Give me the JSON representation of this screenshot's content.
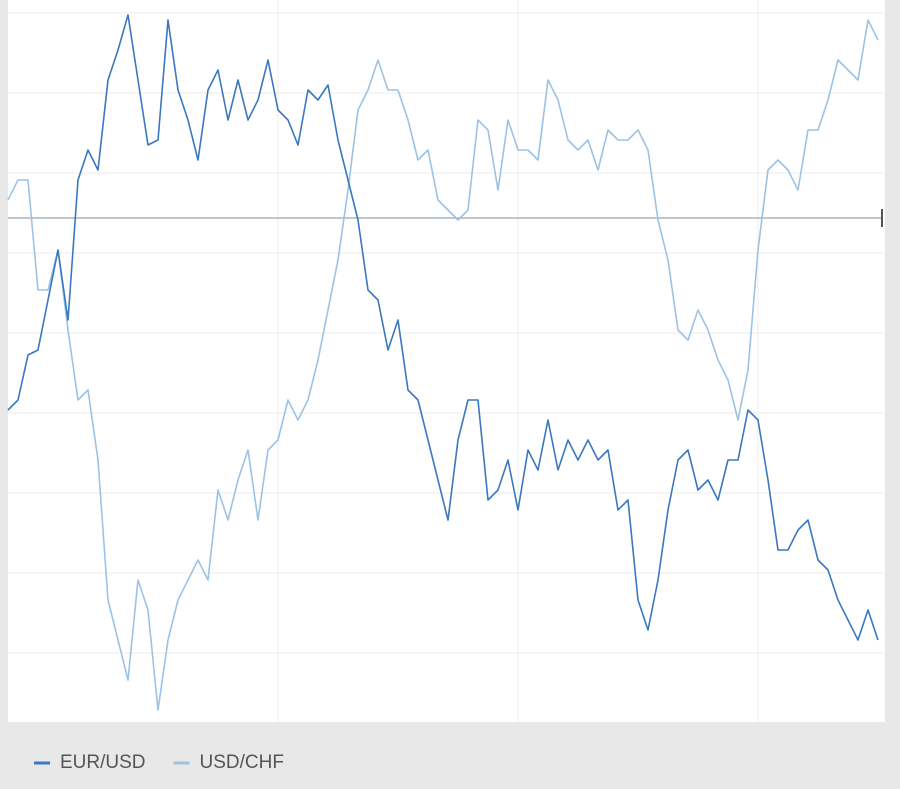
{
  "chart_data": {
    "type": "line",
    "x": [
      0,
      1,
      2,
      3,
      4,
      5,
      6,
      7,
      8,
      9,
      10,
      11,
      12,
      13,
      14,
      15,
      16,
      17,
      18,
      19,
      20,
      21,
      22,
      23,
      24,
      25,
      26,
      27,
      28,
      29,
      30,
      31,
      32,
      33,
      34,
      35,
      36,
      37,
      38,
      39,
      40,
      41,
      42,
      43,
      44,
      45,
      46,
      47,
      48,
      49,
      50,
      51,
      52,
      53,
      54,
      55,
      56,
      57,
      58,
      59,
      60,
      61,
      62,
      63,
      64,
      65,
      66,
      67,
      68,
      69,
      70,
      71,
      72,
      73,
      74,
      75,
      76,
      77,
      78,
      79,
      80,
      81,
      82,
      83,
      84,
      85,
      86,
      87
    ],
    "series": [
      {
        "name": "EUR/USD",
        "color": "#3a78c0",
        "values": [
          312,
          322,
          367,
          372,
          422,
          472,
          402,
          542,
          572,
          552,
          642,
          672,
          707,
          642,
          577,
          582,
          702,
          632,
          602,
          562,
          632,
          652,
          602,
          642,
          602,
          622,
          662,
          612,
          602,
          577,
          632,
          622,
          637,
          582,
          542,
          502,
          432,
          422,
          372,
          402,
          332,
          322,
          282,
          242,
          202,
          282,
          322,
          322,
          222,
          232,
          262,
          212,
          272,
          252,
          302,
          252,
          282,
          262,
          282,
          262,
          272,
          212,
          222,
          122,
          92,
          142,
          212,
          262,
          272,
          232,
          242,
          222,
          262,
          262,
          312,
          302,
          242,
          172,
          172,
          192,
          202,
          162,
          152,
          122,
          102,
          82,
          112,
          82
        ]
      },
      {
        "name": "USD/CHF",
        "color": "#9cc3e6",
        "values": [
          522,
          542,
          542,
          432,
          432,
          472,
          392,
          322,
          332,
          262,
          122,
          82,
          42,
          142,
          112,
          12,
          82,
          122,
          142,
          162,
          142,
          232,
          202,
          242,
          272,
          202,
          272,
          282,
          322,
          302,
          322,
          362,
          412,
          462,
          532,
          612,
          632,
          662,
          632,
          632,
          602,
          562,
          572,
          522,
          512,
          502,
          512,
          602,
          592,
          532,
          602,
          572,
          572,
          562,
          642,
          622,
          582,
          572,
          582,
          552,
          592,
          582,
          582,
          592,
          572,
          502,
          462,
          392,
          382,
          412,
          392,
          362,
          342,
          302,
          352,
          472,
          552,
          562,
          552,
          532,
          592,
          592,
          622,
          662,
          652,
          642,
          702,
          682
        ]
      }
    ],
    "xlim": [
      0,
      87
    ],
    "xticks": [
      27,
      51,
      75
    ],
    "ylim": [
      0,
      722
    ],
    "yticks": [
      69,
      149,
      229,
      309,
      389,
      469,
      549,
      629,
      709
    ],
    "baseline": 504,
    "grid": true,
    "legend": "bottom-left"
  }
}
